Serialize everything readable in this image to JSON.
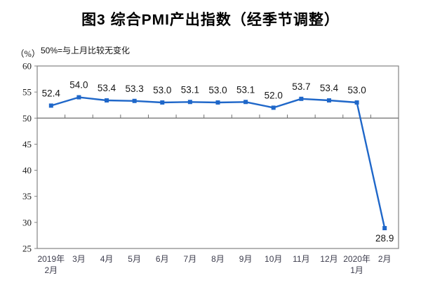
{
  "chart_data": {
    "type": "line",
    "title": "图3  综合PMI产出指数（经季节调整）",
    "subtitle": "50%=与上月比较无变化",
    "unit_label": "（%）",
    "categories": [
      [
        "2019年",
        "2月"
      ],
      [
        "3月"
      ],
      [
        "4月"
      ],
      [
        "5月"
      ],
      [
        "6月"
      ],
      [
        "7月"
      ],
      [
        "8月"
      ],
      [
        "9月"
      ],
      [
        "10月"
      ],
      [
        "11月"
      ],
      [
        "12月"
      ],
      [
        "2020年",
        "1月"
      ],
      [
        "2月"
      ]
    ],
    "values": [
      52.4,
      54.0,
      53.4,
      53.3,
      53.0,
      53.1,
      53.0,
      53.1,
      52.0,
      53.7,
      53.4,
      53.0,
      28.9
    ],
    "point_labels": [
      "52.4",
      "54.0",
      "53.4",
      "53.3",
      "53.0",
      "53.1",
      "53.0",
      "53.1",
      "52.0",
      "53.7",
      "53.4",
      "53.0",
      "28.9"
    ],
    "ylim": [
      25,
      60
    ],
    "yticks": [
      25,
      30,
      35,
      40,
      45,
      50,
      55,
      60
    ],
    "reference_line": 50,
    "grid": false,
    "legend": null,
    "colors": {
      "line": "#1F67C9",
      "marker": "#1F67C9",
      "axis": "#848484",
      "reference": "#6e6e6e",
      "tick_text": "#1a1a1a",
      "category_text": "#3d3d4d",
      "label_text": "#161616"
    }
  }
}
